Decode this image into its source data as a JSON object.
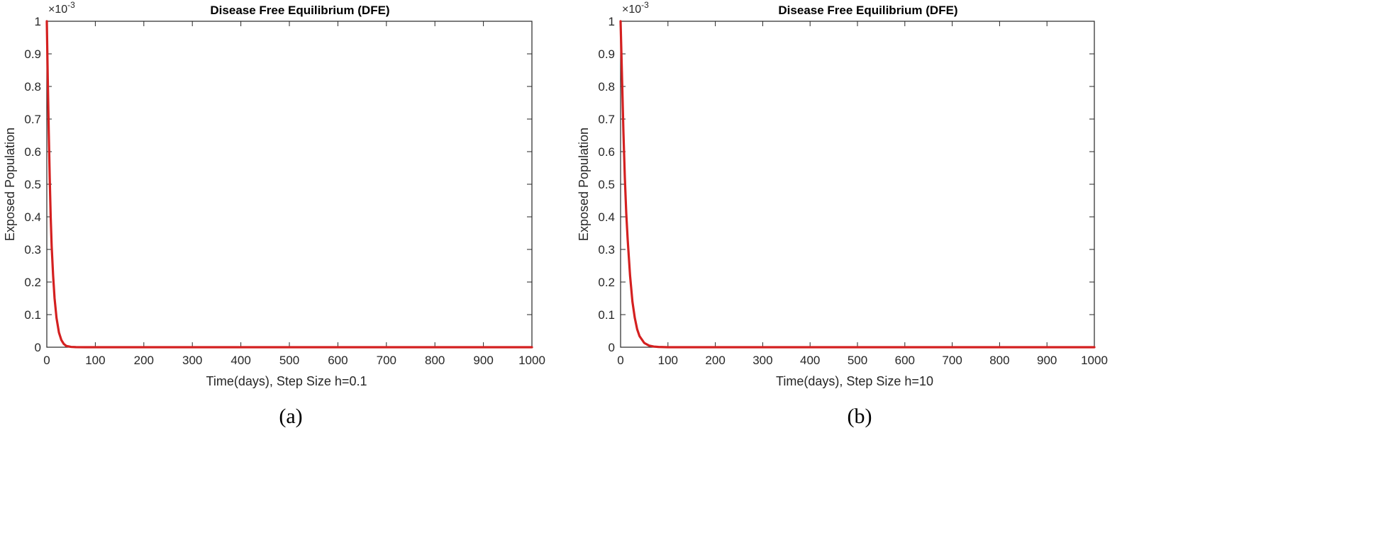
{
  "chart_data": [
    {
      "type": "line",
      "title": "Disease Free Equilibrium (DFE)",
      "xlabel": "Time(days), Step Size h=0.1",
      "ylabel": "Exposed Population",
      "exponent_label": "×10",
      "exponent_power": "-3",
      "caption": "(a)",
      "xlim": [
        0,
        1000
      ],
      "ylim": [
        0,
        0.001
      ],
      "xticks": [
        "0",
        "100",
        "200",
        "300",
        "400",
        "500",
        "600",
        "700",
        "800",
        "900",
        "1000"
      ],
      "yticks": [
        "0",
        "0.1",
        "0.2",
        "0.3",
        "0.4",
        "0.5",
        "0.6",
        "0.7",
        "0.8",
        "0.9",
        "1"
      ],
      "grid": false,
      "series": [
        {
          "color": "#d42020",
          "x": [
            0,
            2,
            4,
            6,
            8,
            10,
            13,
            16,
            20,
            25,
            30,
            35,
            40,
            50,
            60,
            80,
            100,
            200,
            300,
            400,
            500,
            600,
            700,
            800,
            900,
            1000
          ],
          "y": [
            0.001,
            0.00082,
            0.00066,
            0.00052,
            0.0004,
            0.00031,
            0.00022,
            0.00015,
            9e-05,
            4.5e-05,
            2.2e-05,
            1e-05,
            4e-06,
            1e-06,
            3e-07,
            0,
            0,
            0,
            0,
            0,
            0,
            0,
            0,
            0,
            0,
            0
          ]
        }
      ]
    },
    {
      "type": "line",
      "title": "Disease Free Equilibrium (DFE)",
      "xlabel": "Time(days), Step Size h=10",
      "ylabel": "Exposed Population",
      "exponent_label": "×10",
      "exponent_power": "-3",
      "caption": "(b)",
      "xlim": [
        0,
        1000
      ],
      "ylim": [
        0,
        0.001
      ],
      "xticks": [
        "0",
        "100",
        "200",
        "300",
        "400",
        "500",
        "600",
        "700",
        "800",
        "900",
        "1000"
      ],
      "yticks": [
        "0",
        "0.1",
        "0.2",
        "0.3",
        "0.4",
        "0.5",
        "0.6",
        "0.7",
        "0.8",
        "0.9",
        "1"
      ],
      "grid": false,
      "series": [
        {
          "color": "#d42020",
          "x": [
            0,
            3,
            6,
            9,
            12,
            15,
            20,
            25,
            30,
            35,
            40,
            50,
            60,
            70,
            80,
            100,
            200,
            300,
            400,
            500,
            600,
            700,
            800,
            900,
            1000
          ],
          "y": [
            0.001,
            0.00083,
            0.00066,
            0.00052,
            0.00041,
            0.00033,
            0.00022,
            0.00014,
            9e-05,
            5.5e-05,
            3.4e-05,
            1.3e-05,
            5e-06,
            2e-06,
            8e-07,
            0,
            0,
            0,
            0,
            0,
            0,
            0,
            0,
            0,
            0
          ]
        }
      ]
    }
  ]
}
